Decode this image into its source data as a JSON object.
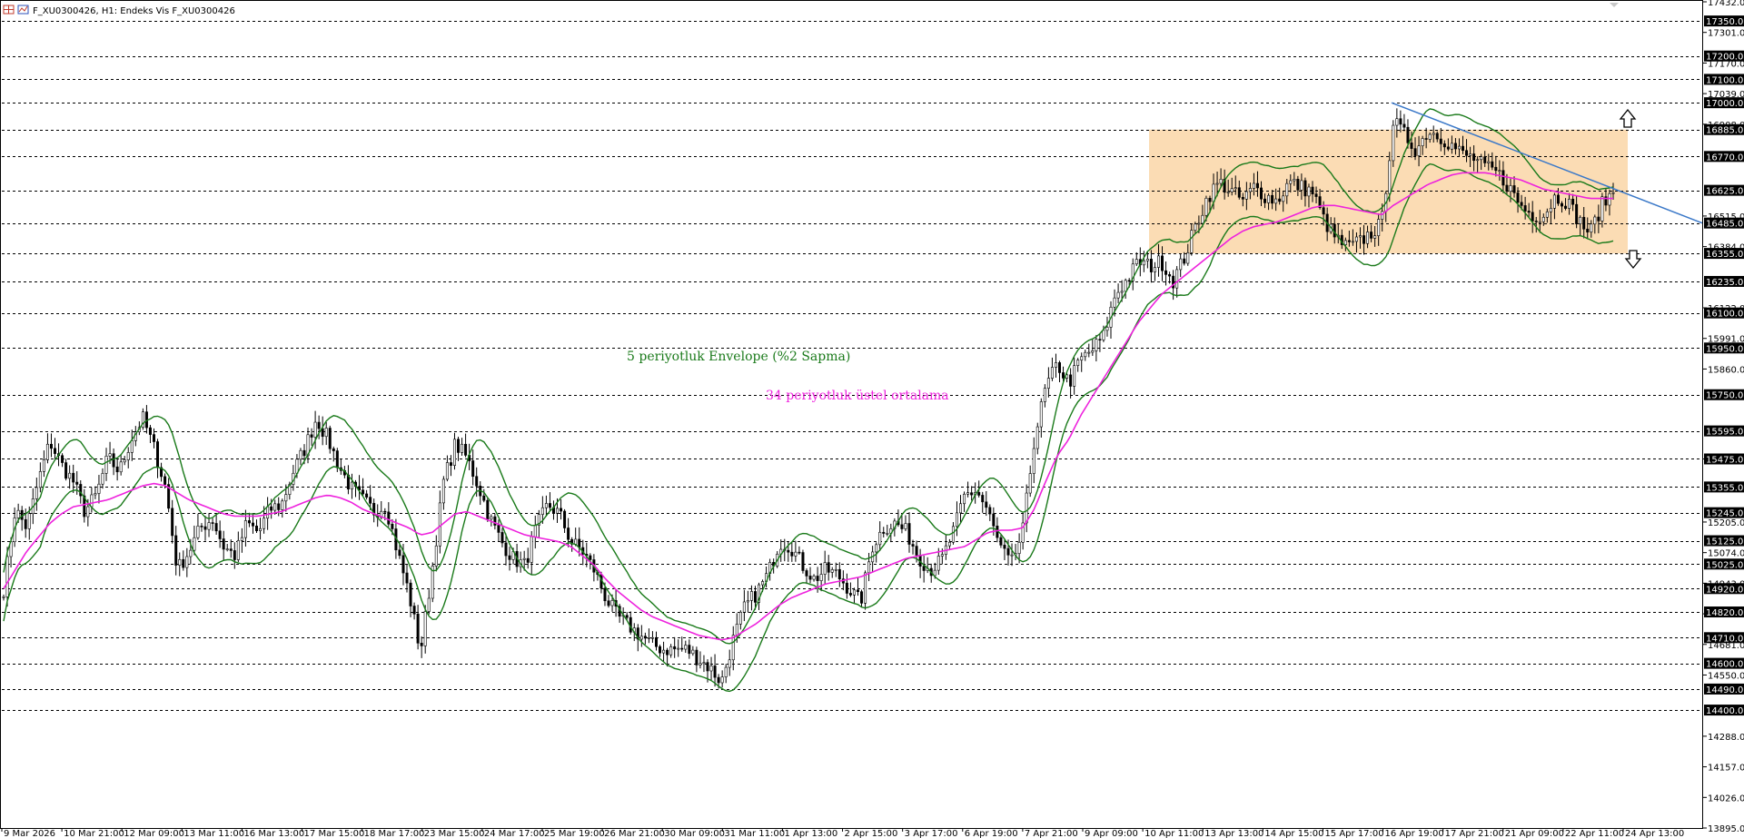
{
  "header": {
    "title": "F_XU0300426, H1:  Endeks Vis F_XU0300426"
  },
  "annotations": {
    "envelope_label": "5 periyotluk Envelope (%2 Sapma)",
    "ema_label": "34 periyotluk üstel ortalama"
  },
  "colors": {
    "background": "#ffffff",
    "candle": "#000000",
    "envelope": "#1a7a1a",
    "ema": "#ee22dd",
    "trendline": "#3a78c8",
    "range_box": "#fbdcb4",
    "level_tag_bg": "#000000",
    "envelope_text": "#1a7a1a",
    "ema_text": "#ee22dd"
  },
  "chart_data": {
    "type": "candlestick",
    "symbol": "F_XU0300426",
    "timeframe": "H1",
    "y_axis": {
      "range": [
        13895,
        17432
      ],
      "tick_labels": [
        "17432.00",
        "17301.00",
        "17170.00",
        "17039.00",
        "16908.00",
        "16515.00",
        "16384.00",
        "16122.00",
        "15991.00",
        "15860.00",
        "15475.00",
        "15205.00",
        "15074.00",
        "14943.00",
        "14812.00",
        "14681.00",
        "14550.00",
        "14288.00",
        "14157.00",
        "14026.00",
        "13895.00"
      ]
    },
    "x_axis": {
      "tick_labels": [
        "9 Mar 2026",
        "10 Mar 21:00",
        "12 Mar 09:00",
        "13 Mar 11:00",
        "16 Mar 13:00",
        "17 Mar 15:00",
        "18 Mar 17:00",
        "23 Mar 15:00",
        "24 Mar 17:00",
        "25 Mar 19:00",
        "26 Mar 21:00",
        "30 Mar 09:00",
        "31 Mar 11:00",
        "1 Apr 13:00",
        "2 Apr 15:00",
        "3 Apr 17:00",
        "6 Apr 19:00",
        "7 Apr 21:00",
        "9 Apr 09:00",
        "10 Apr 11:00",
        "13 Apr 13:00",
        "14 Apr 15:00",
        "15 Apr 17:00",
        "16 Apr 19:00",
        "17 Apr 21:00",
        "21 Apr 09:00",
        "22 Apr 11:00",
        "24 Apr 13:00"
      ]
    },
    "horizontal_levels": [
      "17350.00",
      "17200.00",
      "17100.00",
      "17000.00",
      "16885.00",
      "16770.00",
      "16625.00",
      "16485.00",
      "16355.00",
      "16235.00",
      "16100.00",
      "15950.00",
      "15750.00",
      "15595.00",
      "15475.00",
      "15355.00",
      "15245.00",
      "15125.00",
      "15025.00",
      "14920.00",
      "14820.00",
      "14710.00",
      "14600.00",
      "14490.00",
      "14400.00"
    ],
    "close_series": [
      14920,
      15260,
      15180,
      15380,
      15550,
      15450,
      15380,
      15250,
      15320,
      15480,
      15420,
      15560,
      15650,
      15520,
      15350,
      15000,
      15080,
      15180,
      15220,
      15100,
      15060,
      15200,
      15160,
      15260,
      15280,
      15420,
      15520,
      15650,
      15560,
      15440,
      15350,
      15300,
      15250,
      15280,
      15080,
      14900,
      14650,
      15000,
      15380,
      15540,
      15480,
      15360,
      15220,
      15120,
      15050,
      15020,
      15180,
      15280,
      15240,
      15120,
      15080,
      15000,
      14880,
      14800,
      14760,
      14720,
      14680,
      14660,
      14660,
      14660,
      14620,
      14580,
      14520,
      14700,
      14840,
      14900,
      14980,
      15120,
      15100,
      15020,
      14960,
      15000,
      14980,
      14920,
      14860,
      15100,
      15180,
      15200,
      15160,
      15060,
      15000,
      15040,
      15160,
      15320,
      15340,
      15250,
      15100,
      15020,
      15160,
      15560,
      15780,
      15880,
      15800,
      15900,
      15940,
      16000,
      16180,
      16240,
      16320,
      16300,
      16320,
      16240,
      16340,
      16480,
      16600,
      16660,
      16620,
      16580,
      16640,
      16600,
      16580,
      16660,
      16640,
      16620,
      16500,
      16420,
      16380,
      16400,
      16440,
      16480,
      16920,
      16860,
      16800,
      16880,
      16860,
      16820,
      16780,
      16760,
      16720,
      16700,
      16640,
      16560,
      16520,
      16520,
      16600,
      16580,
      16500,
      16440,
      16560,
      16620
    ],
    "ema34_series": [
      14920,
      15000,
      15080,
      15140,
      15200,
      15240,
      15270,
      15280,
      15290,
      15300,
      15320,
      15340,
      15360,
      15370,
      15360,
      15330,
      15300,
      15280,
      15260,
      15240,
      15230,
      15230,
      15230,
      15240,
      15250,
      15270,
      15290,
      15310,
      15320,
      15310,
      15290,
      15260,
      15240,
      15220,
      15200,
      15180,
      15150,
      15160,
      15200,
      15240,
      15250,
      15230,
      15210,
      15190,
      15170,
      15150,
      15140,
      15130,
      15120,
      15100,
      15060,
      15020,
      14960,
      14910,
      14870,
      14830,
      14800,
      14780,
      14760,
      14740,
      14720,
      14710,
      14700,
      14710,
      14740,
      14770,
      14810,
      14850,
      14880,
      14900,
      14920,
      14940,
      14950,
      14960,
      14970,
      14990,
      15010,
      15030,
      15050,
      15060,
      15070,
      15080,
      15090,
      15100,
      15130,
      15160,
      15170,
      15170,
      15180,
      15260,
      15380,
      15490,
      15560,
      15660,
      15740,
      15820,
      15900,
      15980,
      16060,
      16120,
      16180,
      16220,
      16260,
      16300,
      16340,
      16380,
      16420,
      16450,
      16470,
      16480,
      16490,
      16510,
      16530,
      16550,
      16560,
      16560,
      16550,
      16540,
      16530,
      16520,
      16560,
      16590,
      16620,
      16650,
      16670,
      16690,
      16700,
      16700,
      16700,
      16690,
      16680,
      16670,
      16650,
      16630,
      16620,
      16610,
      16600,
      16590,
      16590,
      16590
    ],
    "envelope_pct": 2,
    "envelope_period": 5,
    "ema_period": 34,
    "range_box": {
      "top": 16885,
      "bottom": 16355
    },
    "trendline": {
      "from": 17000,
      "to": 16485
    }
  },
  "signals": {
    "up_arrow": "up-arrow",
    "down_arrow": "down-arrow"
  }
}
